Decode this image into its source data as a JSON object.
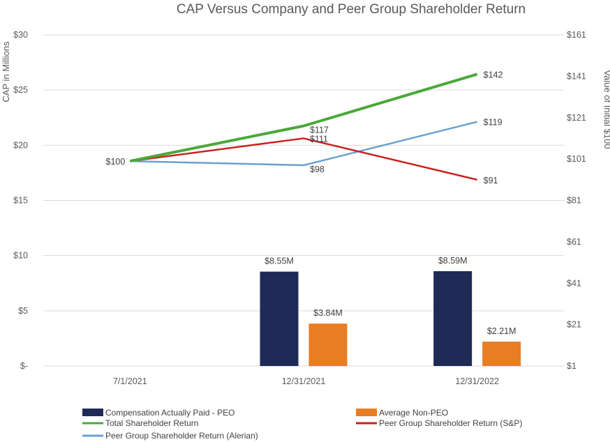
{
  "chart_data": {
    "type": "bar",
    "title": "CAP Versus Company and Peer Group Shareholder Return",
    "categories": [
      "7/1/2021",
      "12/31/2021",
      "12/31/2022"
    ],
    "y_left": {
      "label": "CAP in Millions",
      "range": [
        0,
        30
      ],
      "ticks": [
        0,
        5,
        10,
        15,
        20,
        25,
        30
      ],
      "tick_labels": [
        "$-",
        "$5",
        "$10",
        "$15",
        "$20",
        "$25",
        "$30"
      ]
    },
    "y_right": {
      "label": "Value of Initial $100",
      "range": [
        1,
        161
      ],
      "ticks": [
        1,
        21,
        41,
        61,
        81,
        101,
        121,
        141,
        161
      ],
      "tick_labels": [
        "$1",
        "$21",
        "$41",
        "$61",
        "$81",
        "$101",
        "$121",
        "$141",
        "$161"
      ]
    },
    "bar_series": [
      {
        "name": "Compensation Actually Paid - PEO",
        "color": "#1f2a56",
        "values": [
          null,
          8.55,
          8.59
        ],
        "labels": [
          "",
          "$8.55M",
          "$8.59M"
        ]
      },
      {
        "name": "Average Non-PEO",
        "color": "#e87d24",
        "values": [
          null,
          3.84,
          2.21
        ],
        "labels": [
          "",
          "$3.84M",
          "$2.21M"
        ]
      }
    ],
    "line_series": [
      {
        "name": "Total Shareholder Return",
        "color": "#4aa83a",
        "values": [
          100,
          117,
          142
        ],
        "labels": [
          "$100",
          "$117",
          "$142"
        ]
      },
      {
        "name": "Peer Group Shareholder Return (S&P)",
        "color": "#cc1f1f",
        "values": [
          100,
          111,
          91
        ],
        "labels": [
          "",
          "$111",
          "$91"
        ]
      },
      {
        "name": "Peer Group Shareholder Return (Alerian)",
        "color": "#6a9fd0",
        "values": [
          100,
          98,
          119
        ],
        "labels": [
          "",
          "$98",
          "$119"
        ]
      }
    ],
    "legend_position": "bottom",
    "grid": true
  }
}
